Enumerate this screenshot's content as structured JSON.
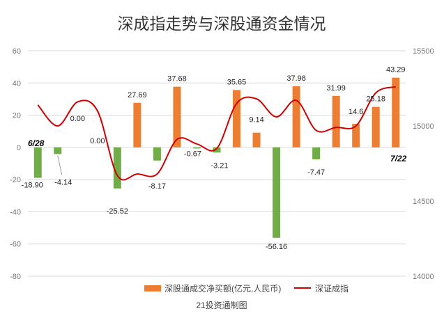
{
  "chart_data": {
    "type": "bar",
    "title": "深成指走势与深股通资金情况",
    "source": "21投资通制图",
    "colors": {
      "positive": "#ED7D31",
      "negative": "#70AD47",
      "line": "#D00000",
      "grid": "#D9D9D9"
    },
    "y_left": {
      "min": -80,
      "max": 60,
      "ticks": [
        60,
        40,
        20,
        0,
        -20,
        -40,
        -60,
        -80
      ]
    },
    "y_right": {
      "min": 14000,
      "max": 15500,
      "ticks": [
        15500,
        15000,
        14500,
        14000
      ]
    },
    "start_date_label": "6/28",
    "end_date_label": "7/22",
    "series": [
      {
        "name": "深股通成交净买额(亿元,人民币)",
        "type": "bar",
        "axis": "left",
        "values": [
          -18.9,
          -4.14,
          0.0,
          0.0,
          -25.52,
          27.69,
          -8.17,
          37.68,
          -0.67,
          -3.21,
          35.65,
          9.14,
          -56.16,
          37.98,
          -7.47,
          31.99,
          14.6,
          25.18,
          43.29
        ],
        "labels": [
          "-18.90",
          "-4.14",
          "0.00",
          "0.00",
          "-25.52",
          "27.69",
          "-8.17",
          "37.68",
          "-0.67",
          "-3.21",
          "35.65",
          "9.14",
          "-56.16",
          "37.98",
          "-7.47",
          "31.99",
          "14.6",
          "25.18",
          "43.29"
        ]
      },
      {
        "name": "深证成指",
        "type": "line",
        "axis": "right",
        "values": [
          15140,
          15000,
          15160,
          15100,
          14670,
          14680,
          14680,
          14910,
          14880,
          14850,
          15150,
          15180,
          15060,
          15170,
          14970,
          14990,
          15000,
          15220,
          15260
        ]
      }
    ]
  }
}
